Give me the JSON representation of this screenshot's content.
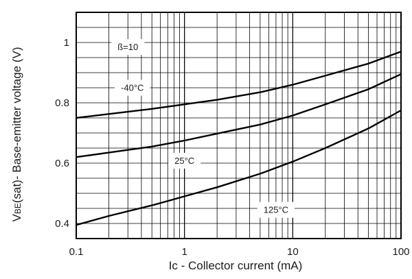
{
  "chart_data": {
    "type": "line",
    "title": "",
    "xlabel": "Ic - Collector current (mA)",
    "ylabel_main": "V",
    "ylabel_sub": "BE",
    "ylabel_rest": "(sat)- Base-emitter voltage (V)",
    "x_scale": "log",
    "xlim": [
      0.1,
      100
    ],
    "ylim": [
      0.35,
      1.1
    ],
    "x_ticks": [
      0.1,
      1,
      10,
      100
    ],
    "x_tick_labels": [
      "0.1",
      "1",
      "10",
      "100"
    ],
    "y_ticks": [
      0.4,
      0.6,
      0.8,
      1.0
    ],
    "y_tick_labels": [
      "0.4",
      "0.6",
      "0.8",
      "1"
    ],
    "grid": true,
    "series": [
      {
        "name": "-40°C",
        "x": [
          0.1,
          0.2,
          0.5,
          1,
          2,
          5,
          10,
          20,
          50,
          100
        ],
        "y": [
          0.75,
          0.763,
          0.78,
          0.795,
          0.81,
          0.835,
          0.86,
          0.89,
          0.93,
          0.97
        ]
      },
      {
        "name": "25°C",
        "x": [
          0.1,
          0.2,
          0.5,
          1,
          2,
          5,
          10,
          20,
          50,
          100
        ],
        "y": [
          0.62,
          0.635,
          0.655,
          0.675,
          0.698,
          0.728,
          0.758,
          0.795,
          0.845,
          0.895
        ]
      },
      {
        "name": "125°C",
        "x": [
          0.1,
          0.2,
          0.5,
          1,
          2,
          5,
          10,
          20,
          50,
          100
        ],
        "y": [
          0.395,
          0.425,
          0.46,
          0.49,
          0.52,
          0.565,
          0.605,
          0.65,
          0.715,
          0.775
        ]
      }
    ],
    "annotations": [
      {
        "text": "ß=10",
        "x": 0.3,
        "y": 0.985
      },
      {
        "text": "-40°C",
        "x": 0.33,
        "y": 0.85
      },
      {
        "text": "25°C",
        "x": 1.0,
        "y": 0.608
      },
      {
        "text": "125°C",
        "x": 7.0,
        "y": 0.445
      }
    ]
  }
}
